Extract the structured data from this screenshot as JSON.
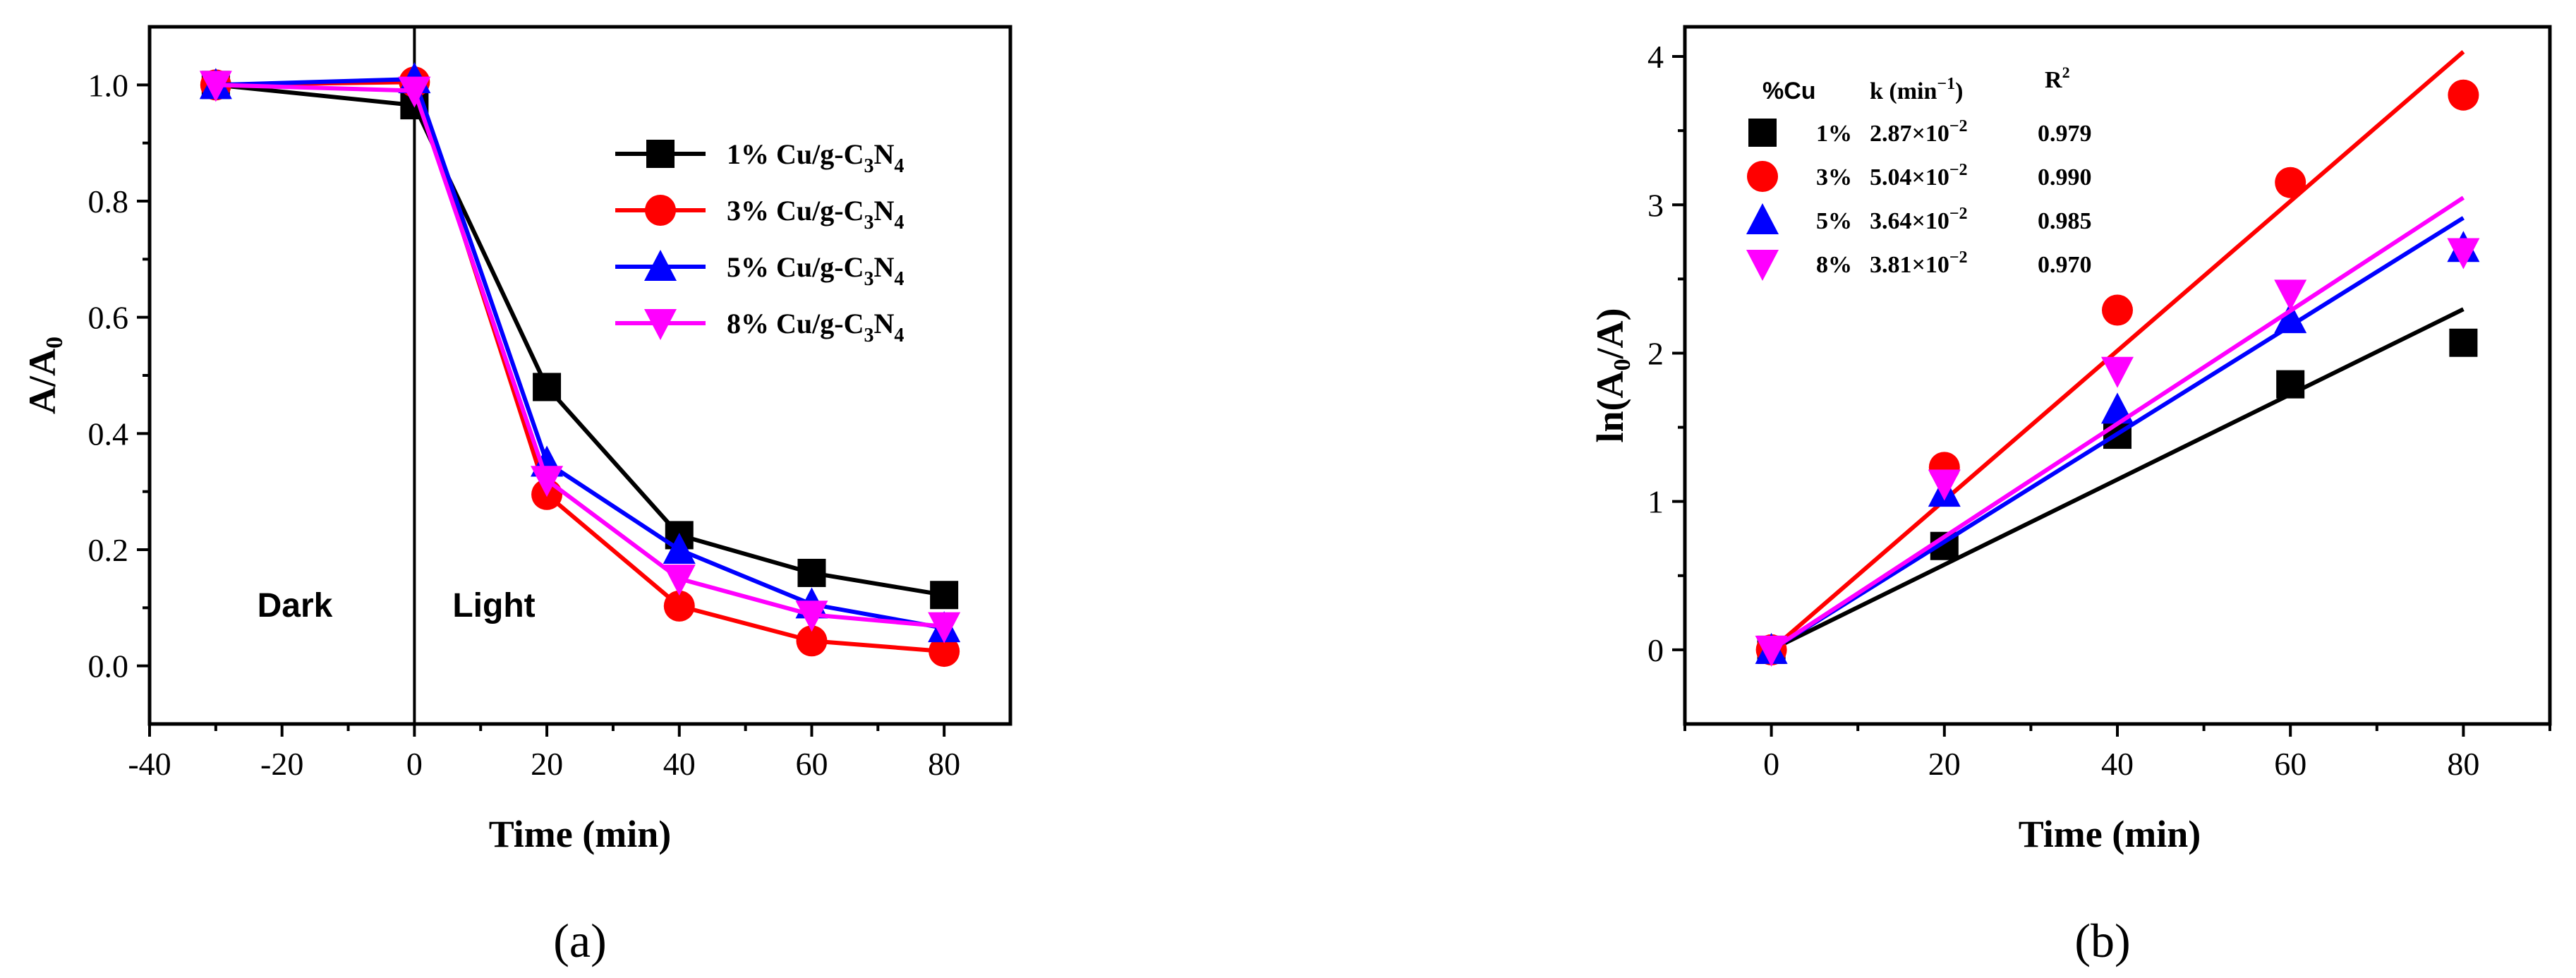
{
  "chart_data": [
    {
      "type": "line",
      "panel_label": "(a)",
      "xlabel": "Time (min)",
      "ylabel": "A/A0",
      "ylabel_main": "A/A",
      "ylabel_sub": "0",
      "xlim": [
        -40,
        90
      ],
      "ylim": [
        -0.1,
        1.1
      ],
      "xticks": [
        -40,
        -20,
        0,
        20,
        40,
        60,
        80
      ],
      "yticks": [
        0.0,
        0.2,
        0.4,
        0.6,
        0.8,
        1.0
      ],
      "xtick_labels": [
        "-40",
        "-20",
        "0",
        "20",
        "40",
        "60",
        "80"
      ],
      "ytick_labels": [
        "0.0",
        "0.2",
        "0.4",
        "0.6",
        "0.8",
        "1.0"
      ],
      "annotations": [
        "Dark",
        "Light"
      ],
      "divider_x": 0,
      "legend_position": "right",
      "x": [
        -30,
        0,
        20,
        40,
        60,
        80
      ],
      "series": [
        {
          "name": "1% Cu/g-C3N4",
          "label_pre": "1% Cu/g-C",
          "sub1": "3",
          "mid": "N",
          "sub2": "4",
          "color": "#000000",
          "marker": "square",
          "values": [
            1.0,
            0.965,
            0.48,
            0.225,
            0.16,
            0.122
          ]
        },
        {
          "name": "3% Cu/g-C3N4",
          "label_pre": "3% Cu/g-C",
          "sub1": "3",
          "mid": "N",
          "sub2": "4",
          "color": "#ff0000",
          "marker": "circle",
          "values": [
            1.0,
            1.005,
            0.295,
            0.103,
            0.043,
            0.025
          ]
        },
        {
          "name": "5% Cu/g-C3N4",
          "label_pre": "5% Cu/g-C",
          "sub1": "3",
          "mid": "N",
          "sub2": "4",
          "color": "#0000ff",
          "marker": "triangle-up",
          "values": [
            1.0,
            1.01,
            0.35,
            0.2,
            0.106,
            0.065
          ]
        },
        {
          "name": "8% Cu/g-C3N4",
          "label_pre": "8% Cu/g-C",
          "sub1": "3",
          "mid": "N",
          "sub2": "4",
          "color": "#ff00ff",
          "marker": "triangle-down",
          "values": [
            1.0,
            0.99,
            0.32,
            0.15,
            0.088,
            0.068
          ]
        }
      ]
    },
    {
      "type": "scatter",
      "panel_label": "(b)",
      "xlabel": "Time (min)",
      "ylabel": "ln(A0/A)",
      "ylabel_pre": "ln(A",
      "ylabel_sub": "0",
      "ylabel_post": "/A)",
      "xlim": [
        -10,
        90
      ],
      "ylim": [
        -0.5,
        4.2
      ],
      "xticks": [
        0,
        20,
        40,
        60,
        80
      ],
      "yticks": [
        0,
        1,
        2,
        3,
        4
      ],
      "xtick_labels": [
        "0",
        "20",
        "40",
        "60",
        "80"
      ],
      "ytick_labels": [
        "0",
        "1",
        "2",
        "3",
        "4"
      ],
      "legend_position": "top-left",
      "table_headers": {
        "cu": "%Cu",
        "k_pre": "k (min",
        "k_sup": "−1",
        "k_post": ")",
        "r2_pre": "R",
        "r2_sup": "2"
      },
      "x": [
        0,
        20,
        40,
        60,
        80
      ],
      "series": [
        {
          "name": "1%",
          "k_mant": "2.87×10",
          "k_exp": "−2",
          "k": 0.0287,
          "r2": "0.979",
          "color": "#000000",
          "marker": "square",
          "values": [
            0,
            0.7,
            1.45,
            1.79,
            2.07
          ]
        },
        {
          "name": "3%",
          "k_mant": "5.04×10",
          "k_exp": "−2",
          "k": 0.0504,
          "r2": "0.990",
          "color": "#ff0000",
          "marker": "circle",
          "values": [
            0,
            1.23,
            2.29,
            3.15,
            3.74
          ]
        },
        {
          "name": "5%",
          "k_mant": "3.64×10",
          "k_exp": "−2",
          "k": 0.0364,
          "r2": "0.985",
          "color": "#0000ff",
          "marker": "triangle-up",
          "values": [
            0,
            1.06,
            1.62,
            2.23,
            2.71
          ]
        },
        {
          "name": "8%",
          "k_mant": "3.81×10",
          "k_exp": "−2",
          "k": 0.0381,
          "r2": "0.970",
          "color": "#ff00ff",
          "marker": "triangle-down",
          "values": [
            0,
            1.12,
            1.88,
            2.4,
            2.68
          ]
        }
      ]
    }
  ]
}
